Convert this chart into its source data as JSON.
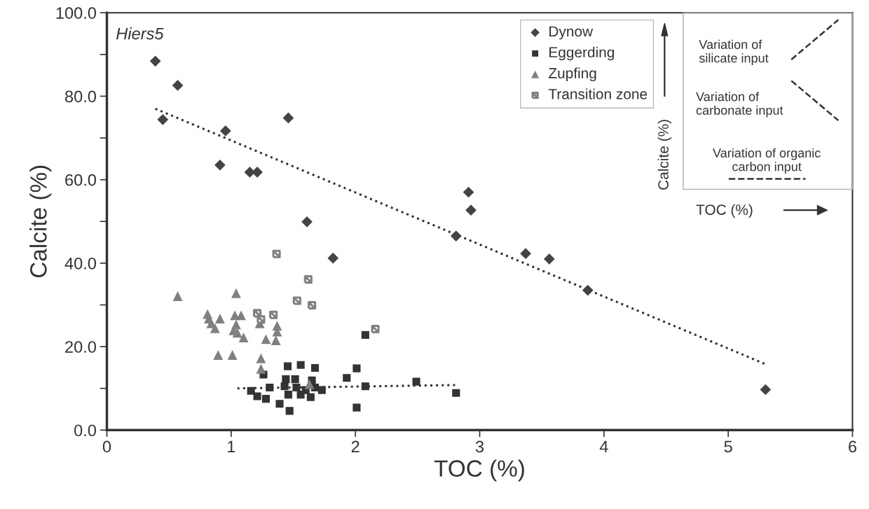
{
  "chart_data": {
    "type": "scatter",
    "xlabel": "TOC (%)",
    "ylabel": "Calcite (%)",
    "xlim": [
      0,
      6
    ],
    "xticks": [
      0,
      1,
      2,
      3,
      4,
      5,
      6
    ],
    "ylim": [
      0,
      100
    ],
    "yticks": [
      {
        "value": 0,
        "label": "0.0"
      },
      {
        "value": 10,
        "label": null
      },
      {
        "value": 20,
        "label": "20.0"
      },
      {
        "value": 30,
        "label": null
      },
      {
        "value": 40,
        "label": "40.0"
      },
      {
        "value": 50,
        "label": null
      },
      {
        "value": 60,
        "label": "60.0"
      },
      {
        "value": 70,
        "label": null
      },
      {
        "value": 80,
        "label": "80.0"
      },
      {
        "value": 90,
        "label": null
      },
      {
        "value": 100,
        "label": "100.0"
      }
    ],
    "grid": false,
    "legend": "top",
    "series": [
      {
        "name": "Dynow",
        "color": "#444444",
        "marker": "diamond",
        "x": [
          0.39,
          0.57,
          0.45,
          0.955,
          0.91,
          1.15,
          1.21,
          1.46,
          1.61,
          1.82,
          2.91,
          2.93,
          2.81,
          3.37,
          3.56,
          3.87,
          5.3
        ],
        "values": [
          88.4,
          82.6,
          74.4,
          71.7,
          63.5,
          61.8,
          61.8,
          74.8,
          49.9,
          41.2,
          57.0,
          52.7,
          46.5,
          42.3,
          41.0,
          33.5,
          9.7
        ]
      },
      {
        "name": "Eggerding",
        "color": "#333333",
        "marker": "square",
        "x": [
          2.08,
          1.455,
          1.56,
          1.675,
          2.01,
          1.93,
          1.26,
          2.49,
          2.08,
          1.16,
          1.31,
          1.21,
          1.28,
          1.44,
          1.515,
          1.43,
          1.525,
          1.6,
          1.675,
          1.73,
          1.46,
          1.56,
          1.64,
          1.39,
          1.47,
          2.01,
          1.65,
          2.81
        ],
        "values": [
          22.8,
          15.3,
          15.6,
          14.9,
          14.8,
          12.5,
          13.3,
          11.6,
          10.5,
          9.4,
          10.2,
          8.1,
          7.5,
          12.2,
          12.2,
          10.5,
          10.2,
          9.6,
          10.2,
          9.6,
          8.5,
          8.5,
          7.9,
          6.3,
          4.6,
          5.4,
          11.9,
          8.9
        ]
      },
      {
        "name": "Zupfing",
        "color": "#808080",
        "marker": "triangle",
        "x": [
          0.57,
          1.04,
          0.81,
          0.82,
          0.84,
          0.87,
          0.91,
          1.03,
          1.08,
          1.04,
          1.02,
          1.05,
          1.1,
          1.21,
          1.23,
          1.37,
          1.37,
          1.28,
          1.36,
          0.895,
          1.01,
          1.24,
          1.24,
          1.63
        ],
        "values": [
          32.1,
          32.8,
          27.8,
          26.7,
          25.6,
          24.4,
          26.7,
          27.5,
          27.5,
          25.3,
          23.9,
          23.3,
          22.2,
          null,
          25.6,
          25.0,
          23.6,
          21.8,
          21.5,
          18.0,
          18.0,
          17.2,
          14.7,
          11.0
        ]
      },
      {
        "name": "Transition zone",
        "color": "#808080",
        "marker": "cross",
        "x": [
          1.365,
          1.62,
          1.53,
          1.65,
          1.21,
          1.34,
          1.24,
          2.16
        ],
        "values": [
          42.2,
          36.1,
          31.0,
          29.9,
          28.0,
          27.6,
          26.5,
          24.2
        ]
      },
      {
        "type": "line",
        "color": "#333333",
        "line_style": "dotted",
        "marker": "none",
        "x": [
          0.39,
          5.3
        ],
        "values": [
          77.0,
          15.8
        ]
      },
      {
        "type": "line",
        "color": "#333333",
        "line_style": "dotted",
        "marker": "none",
        "x": [
          1.05,
          2.81
        ],
        "values": [
          10.0,
          10.8
        ]
      }
    ],
    "annotations": [
      "Hiers5",
      "Variation of\nsilicate input",
      "Variation of\ncarbonate input",
      "Variation of organic\ncarbon input",
      "Calcite (%)",
      "TOC (%)"
    ]
  }
}
